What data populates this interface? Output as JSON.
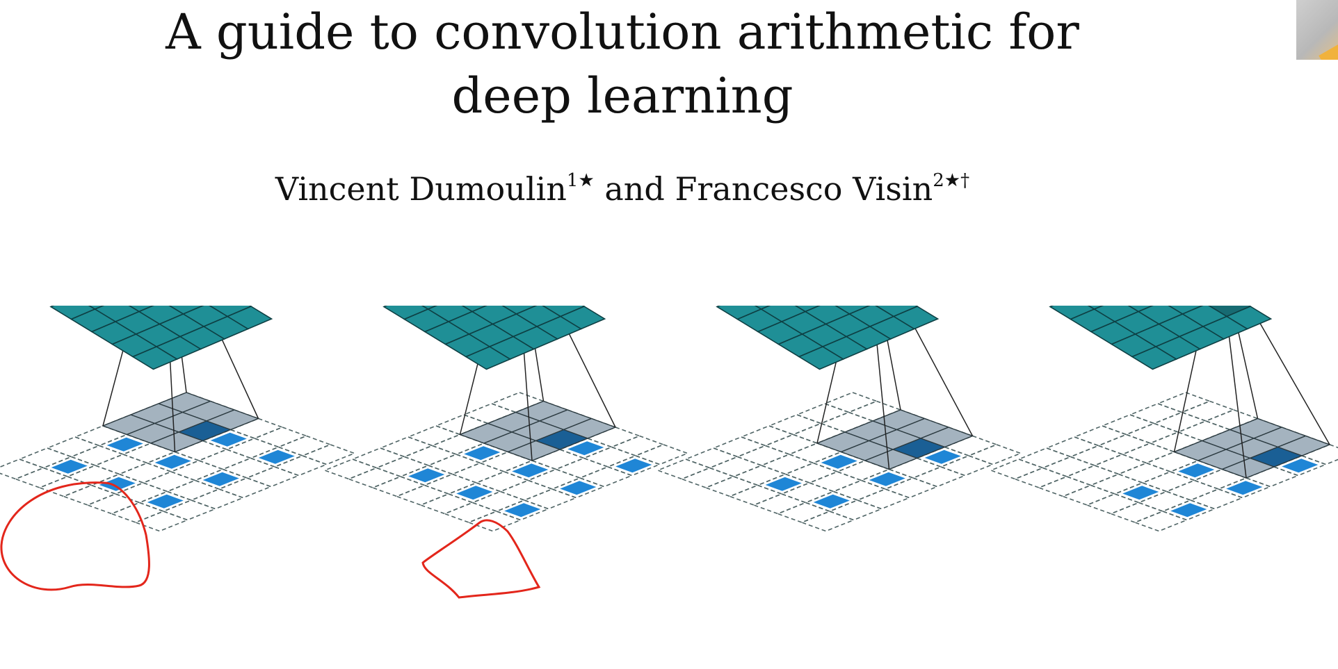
{
  "paper": {
    "title": "A guide to convolution arithmetic for deep learning",
    "author1": "Vincent Dumoulin",
    "author1_marks": "1",
    "conjunction": "and",
    "author2": "Francesco Visin",
    "author2_marks": "2",
    "star_glyph": "★",
    "dagger_glyph": "†"
  },
  "figure": {
    "panel_count": 4,
    "output_grid_size": 5,
    "input_grid_size": 7,
    "kernel_size": 3,
    "panels": [
      {
        "kernel_row": 0,
        "kernel_col": 0,
        "output_row": 0,
        "output_col": 0
      },
      {
        "kernel_row": 0,
        "kernel_col": 1,
        "output_row": 0,
        "output_col": 1
      },
      {
        "kernel_row": 0,
        "kernel_col": 2,
        "output_row": 0,
        "output_col": 2
      },
      {
        "kernel_row": 0,
        "kernel_col": 3,
        "output_row": 0,
        "output_col": 3
      }
    ],
    "colors": {
      "output_fill": "#1f8f96",
      "output_highlight": "#176b72",
      "input_dash": "#4f6465",
      "kernel_fill": "#a4b3bf",
      "kernel_dark": "#1a5f95",
      "input_blue": "#1f86d6",
      "annotation_red": "#e3261b"
    }
  },
  "annotations": [
    "red-circle-panel-1",
    "red-scribble-panel-2"
  ]
}
